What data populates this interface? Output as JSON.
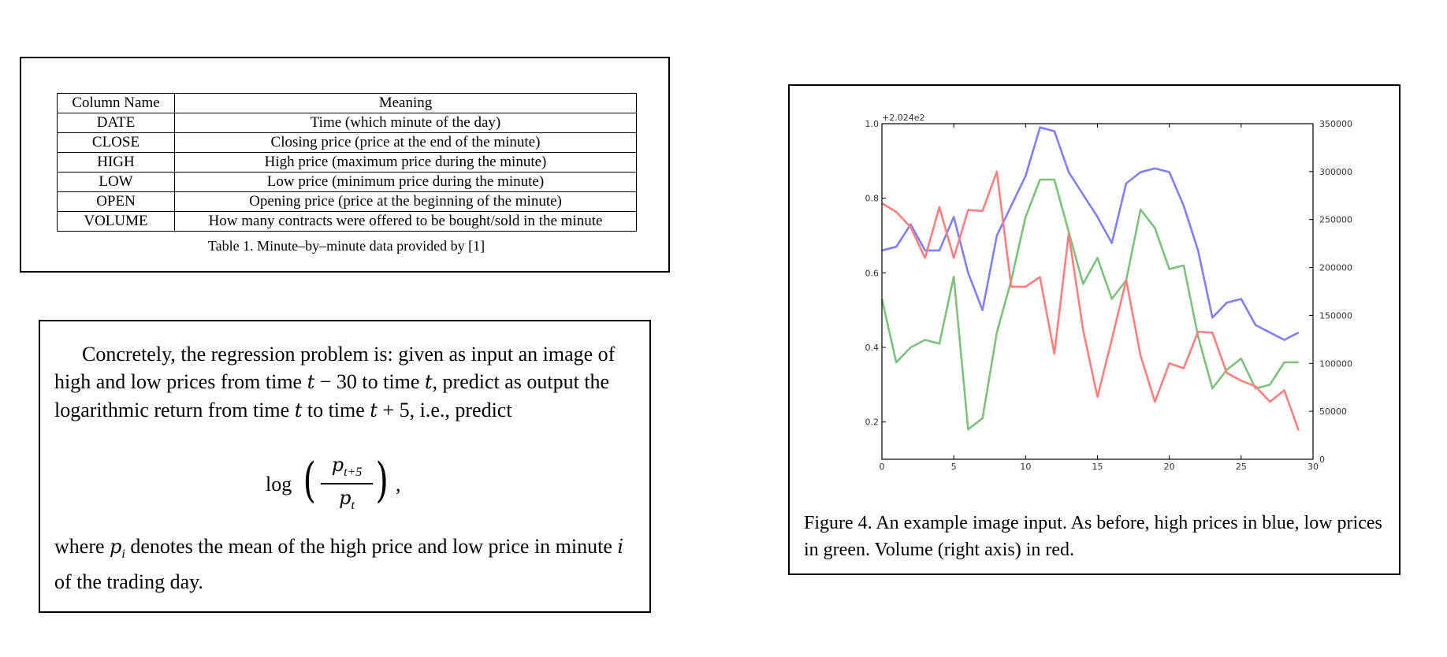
{
  "table": {
    "headers": [
      "Column Name",
      "Meaning"
    ],
    "rows": [
      [
        "DATE",
        "Time (which minute of the day)"
      ],
      [
        "CLOSE",
        "Closing price (price at the end of the minute)"
      ],
      [
        "HIGH",
        "High price (maximum price during the minute)"
      ],
      [
        "LOW",
        "Low price (minimum price during the minute)"
      ],
      [
        "OPEN",
        "Opening price (price at the beginning of the minute)"
      ],
      [
        "VOLUME",
        "How many contracts were offered to be bought/sold in the minute"
      ]
    ],
    "caption": "Table 1. Minute–by–minute data provided by [1]"
  },
  "text": {
    "p1": {
      "a": "Concretely, the regression problem is: given as input an image of high and low prices from time ",
      "m1": "t",
      "b": " − 30 to time ",
      "m2": "t",
      "c": ", predict as output the logarithmic return from time ",
      "m3": "t",
      "d": " to time ",
      "m4": "t",
      "e": " + 5, i.e., predict"
    },
    "equation": {
      "log": "log",
      "lparen": "(",
      "num_p": "p",
      "num_sub": "t+5",
      "den_p": "p",
      "den_sub": "t",
      "rparen": ")",
      "comma": ","
    },
    "p2": {
      "a": "where ",
      "m1": "p",
      "sub1": "i",
      "b": " denotes the mean of the high price and low price in minute ",
      "m2": "i",
      "c": " of the trading day."
    }
  },
  "figure": {
    "caption": "Figure 4. An example image input. As before, high prices in blue, low prices in green. Volume (right axis) in red."
  },
  "chart_data": {
    "type": "line",
    "offset_label": "+2.024e2",
    "x": [
      0,
      1,
      2,
      3,
      4,
      5,
      6,
      7,
      8,
      9,
      10,
      11,
      12,
      13,
      14,
      15,
      16,
      17,
      18,
      19,
      20,
      21,
      22,
      23,
      24,
      25,
      26,
      27,
      28,
      29
    ],
    "xlim": [
      0,
      30
    ],
    "x_ticks": [
      "0",
      "5",
      "10",
      "15",
      "20",
      "25",
      "30"
    ],
    "ylim_left": [
      0.1,
      1.0
    ],
    "y_ticks_left": [
      "0.2",
      "0.4",
      "0.6",
      "0.8",
      "1.0"
    ],
    "ylim_right": [
      0,
      350000
    ],
    "y_ticks_right": [
      "0",
      "50000",
      "100000",
      "150000",
      "200000",
      "250000",
      "300000",
      "350000"
    ],
    "series": [
      {
        "axis": "left",
        "color": "#7f7fff",
        "values": [
          0.66,
          0.67,
          0.73,
          0.66,
          0.66,
          0.75,
          0.6,
          0.5,
          0.7,
          0.78,
          0.86,
          0.99,
          0.98,
          0.87,
          0.81,
          0.75,
          0.68,
          0.84,
          0.87,
          0.88,
          0.87,
          0.78,
          0.66,
          0.48,
          0.52,
          0.53,
          0.46,
          0.44,
          0.42,
          0.44
        ]
      },
      {
        "axis": "left",
        "color": "#7fbf7f",
        "values": [
          0.53,
          0.36,
          0.4,
          0.42,
          0.41,
          0.59,
          0.18,
          0.21,
          0.44,
          0.58,
          0.75,
          0.85,
          0.85,
          0.71,
          0.57,
          0.64,
          0.53,
          0.58,
          0.77,
          0.72,
          0.61,
          0.62,
          0.43,
          0.29,
          0.34,
          0.37,
          0.29,
          0.3,
          0.36,
          0.36
        ]
      },
      {
        "axis": "right",
        "color": "#ff7f7f",
        "values": [
          267000,
          258000,
          242000,
          210000,
          263000,
          210000,
          260000,
          259000,
          300000,
          180000,
          180000,
          190000,
          110000,
          235000,
          135000,
          65000,
          125000,
          187000,
          108000,
          60000,
          100000,
          95000,
          133000,
          132000,
          90000,
          82000,
          76000,
          60000,
          72000,
          30000
        ]
      }
    ]
  }
}
